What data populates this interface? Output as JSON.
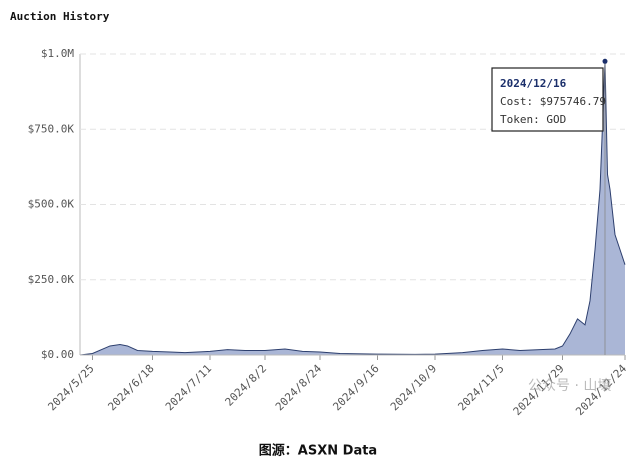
{
  "chart_data": {
    "type": "area",
    "title": "Auction History",
    "x": [
      "2024/5/20",
      "2024/5/25",
      "2024/6/1",
      "2024/6/5",
      "2024/6/8",
      "2024/6/12",
      "2024/6/18",
      "2024/6/25",
      "2024/7/1",
      "2024/7/11",
      "2024/7/18",
      "2024/7/25",
      "2024/8/2",
      "2024/8/10",
      "2024/8/17",
      "2024/8/24",
      "2024/9/1",
      "2024/9/16",
      "2024/10/1",
      "2024/10/9",
      "2024/10/20",
      "2024/10/28",
      "2024/11/5",
      "2024/11/12",
      "2024/11/20",
      "2024/11/26",
      "2024/11/29",
      "2024/12/2",
      "2024/12/5",
      "2024/12/8",
      "2024/12/10",
      "2024/12/12",
      "2024/12/14",
      "2024/12/16",
      "2024/12/17",
      "2024/12/18",
      "2024/12/20",
      "2024/12/22",
      "2024/12/24"
    ],
    "series": [
      {
        "name": "Cost",
        "color": "#aab6d6",
        "line_color": "#2d3f6e",
        "values": [
          0,
          5000,
          30000,
          35000,
          30000,
          15000,
          12000,
          10000,
          8000,
          12000,
          18000,
          15000,
          15000,
          20000,
          12000,
          10000,
          5000,
          3000,
          2000,
          3000,
          8000,
          15000,
          20000,
          15000,
          18000,
          20000,
          30000,
          70000,
          120000,
          100000,
          180000,
          350000,
          550000,
          975746.79,
          600000,
          550000,
          400000,
          350000,
          300000
        ]
      }
    ],
    "xlim": [
      "2024/5/20",
      "2024/12/24"
    ],
    "xticks": [
      "2024/5/25",
      "2024/6/18",
      "2024/7/11",
      "2024/8/2",
      "2024/8/24",
      "2024/9/16",
      "2024/10/9",
      "2024/11/5",
      "2024/11/29",
      "2024/12/24"
    ],
    "ylim": [
      0,
      1000000
    ],
    "yticks": [
      {
        "value": 0,
        "label": "$0.00"
      },
      {
        "value": 250000,
        "label": "$250.0K"
      },
      {
        "value": 500000,
        "label": "$500.0K"
      },
      {
        "value": 750000,
        "label": "$750.0K"
      },
      {
        "value": 1000000,
        "label": "$1.0M"
      }
    ],
    "grid": true,
    "tooltip": {
      "index": 33,
      "date": "2024/12/16",
      "cost": "Cost: $975746.79",
      "token": "Token: GOD"
    },
    "watermark": "公众号 · 山壤",
    "caption": "图源：ASXN Data"
  }
}
